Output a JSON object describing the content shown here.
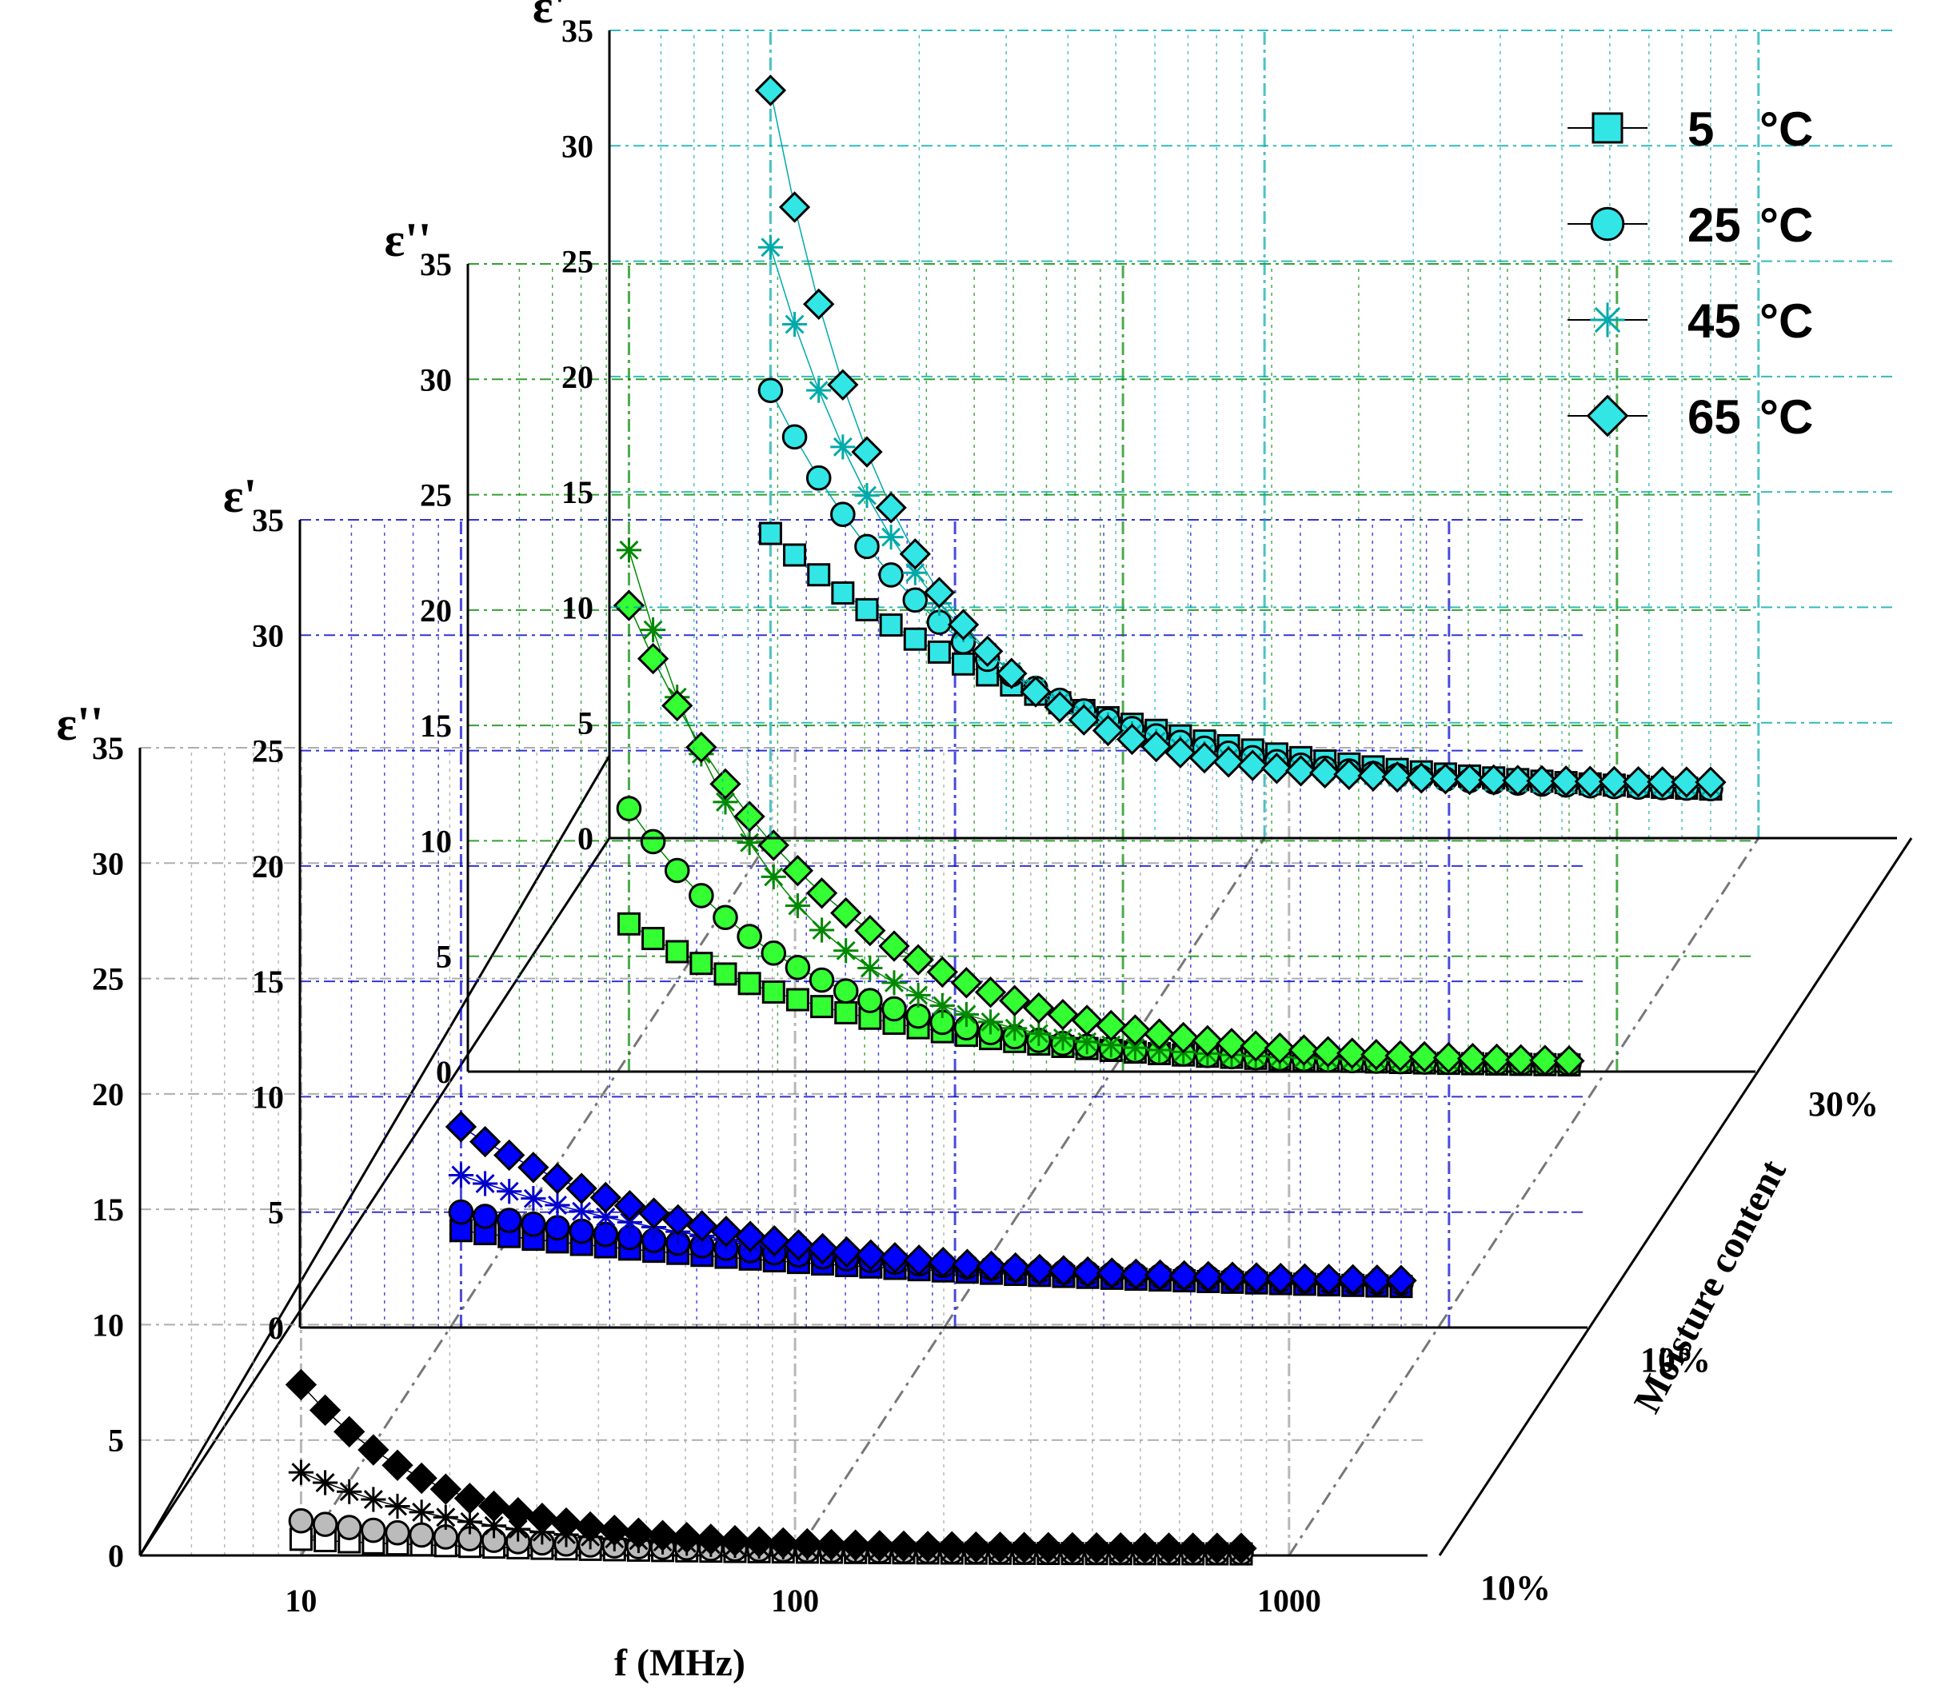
{
  "chart_data": {
    "type": "scatter",
    "title": "",
    "xlabel": "f (MHz)",
    "xscale": "log",
    "xlim": [
      6,
      1500
    ],
    "x_ticks": [
      "10",
      "100",
      "1000"
    ],
    "z_label": "Moisture content",
    "legend": {
      "placement": "top-right",
      "entries": [
        {
          "label": "5",
          "unit": "°C",
          "marker": "square"
        },
        {
          "label": "25",
          "unit": "°C",
          "marker": "circle"
        },
        {
          "label": "45",
          "unit": "°C",
          "marker": "asterisk"
        },
        {
          "label": "65",
          "unit": "°C",
          "marker": "diamond"
        }
      ]
    },
    "panels": [
      {
        "name": "eps_loss_10",
        "ylabel": "ε''",
        "ylim": [
          0,
          35
        ],
        "y_ticks": [
          "0",
          "5",
          "10",
          "15",
          "20",
          "25",
          "30",
          "35"
        ],
        "moisture": "10%",
        "color": "#000000",
        "fill": "#ffffff",
        "series": [
          {
            "name": "5 °C",
            "x_start": 10,
            "x_end": 800,
            "y_start": 0.7,
            "y_end": 0.05,
            "k": 1.2
          },
          {
            "name": "25 °C",
            "x_start": 10,
            "x_end": 800,
            "y_start": 1.5,
            "y_end": 0.1,
            "k": 1.5
          },
          {
            "name": "45 °C",
            "x_start": 10,
            "x_end": 800,
            "y_start": 3.6,
            "y_end": 0.15,
            "k": 1.8
          },
          {
            "name": "65 °C",
            "x_start": 10,
            "x_end": 800,
            "y_start": 7.4,
            "y_end": 0.3,
            "k": 2.2
          }
        ]
      },
      {
        "name": "eps_real_10",
        "ylabel": "ε'",
        "ylim": [
          0,
          35
        ],
        "y_ticks": [
          "0",
          "5",
          "10",
          "15",
          "20",
          "25",
          "30",
          "35"
        ],
        "moisture": "10%",
        "color": "#0000cc",
        "fill": "#0000ff",
        "series": [
          {
            "name": "5 °C",
            "x_start": 10,
            "x_end": 800,
            "y_start": 4.2,
            "y_end": 1.3,
            "k": 0.6
          },
          {
            "name": "25 °C",
            "x_start": 10,
            "x_end": 800,
            "y_start": 5.0,
            "y_end": 1.5,
            "k": 0.7
          },
          {
            "name": "45 °C",
            "x_start": 10,
            "x_end": 800,
            "y_start": 6.6,
            "y_end": 1.7,
            "k": 1.0
          },
          {
            "name": "65 °C",
            "x_start": 10,
            "x_end": 800,
            "y_start": 8.7,
            "y_end": 1.9,
            "k": 1.3
          }
        ]
      },
      {
        "name": "eps_loss_30",
        "ylabel": "ε''",
        "ylim": [
          0,
          35
        ],
        "y_ticks": [
          "0",
          "5",
          "10",
          "15",
          "20",
          "25",
          "30",
          "35"
        ],
        "moisture": "30%",
        "color": "#008800",
        "fill": "#33ff33",
        "series": [
          {
            "name": "5 °C",
            "x_start": 10,
            "x_end": 800,
            "y_start": 6.4,
            "y_end": 0.2,
            "k": 1.4
          },
          {
            "name": "25 °C",
            "x_start": 10,
            "x_end": 800,
            "y_start": 11.4,
            "y_end": 0.3,
            "k": 1.8
          },
          {
            "name": "45 °C",
            "x_start": 10,
            "x_end": 800,
            "y_start": 22.6,
            "y_end": 0.4,
            "k": 2.2
          },
          {
            "name": "65 °C",
            "x_start": 10,
            "x_end": 800,
            "y_start": 20.2,
            "y_end": 0.3,
            "k": 1.6
          }
        ]
      },
      {
        "name": "eps_real_30",
        "ylabel": "ε'",
        "ylim": [
          0,
          35
        ],
        "y_ticks": [
          "0",
          "5",
          "10",
          "15",
          "20",
          "25",
          "30",
          "35"
        ],
        "moisture": "30%",
        "color": "#00aaaa",
        "fill": "#33e6e6",
        "series": [
          {
            "name": "5 °C",
            "x_start": 10,
            "x_end": 800,
            "y_start": 13.2,
            "y_end": 1.7,
            "k": 1.1
          },
          {
            "name": "25 °C",
            "x_start": 10,
            "x_end": 800,
            "y_start": 19.4,
            "y_end": 2.0,
            "k": 1.6
          },
          {
            "name": "45 °C",
            "x_start": 10,
            "x_end": 800,
            "y_start": 25.6,
            "y_end": 2.2,
            "k": 2.0
          },
          {
            "name": "65 °C",
            "x_start": 10,
            "x_end": 800,
            "y_start": 32.4,
            "y_end": 2.4,
            "k": 2.4
          }
        ]
      }
    ]
  }
}
